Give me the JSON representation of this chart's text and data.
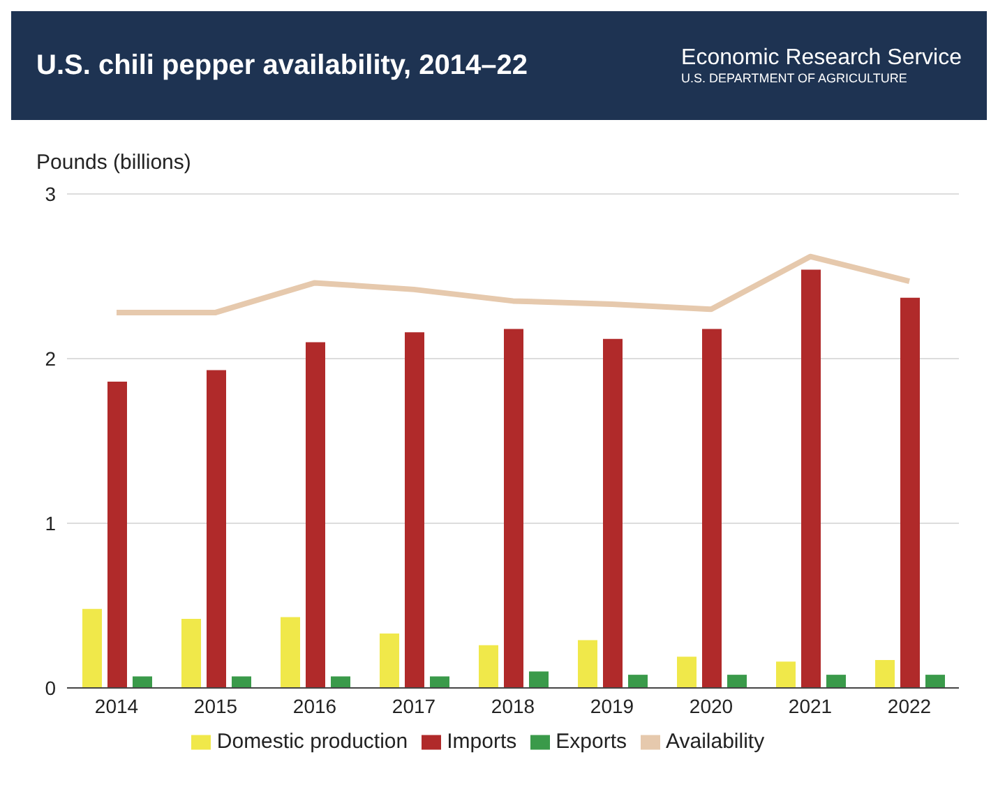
{
  "chart_data": {
    "type": "bar",
    "title": "U.S. chili pepper availability, 2014–22",
    "ylabel": "Pounds (billions)",
    "annotations": [
      "Economic Research Service",
      "U.S. DEPARTMENT OF AGRICULTURE"
    ],
    "categories": [
      "2014",
      "2015",
      "2016",
      "2017",
      "2018",
      "2019",
      "2020",
      "2021",
      "2022"
    ],
    "series": [
      {
        "name": "Domestic production",
        "color": "#f0e84a",
        "values": [
          0.48,
          0.42,
          0.43,
          0.33,
          0.26,
          0.29,
          0.19,
          0.16,
          0.17
        ]
      },
      {
        "name": "Imports",
        "color": "#b02a2a",
        "values": [
          1.86,
          1.93,
          2.1,
          2.16,
          2.18,
          2.12,
          2.18,
          2.54,
          2.37
        ]
      },
      {
        "name": "Exports",
        "color": "#3a9a4a",
        "values": [
          0.07,
          0.07,
          0.07,
          0.07,
          0.1,
          0.08,
          0.08,
          0.08,
          0.08
        ]
      },
      {
        "name": "Availability",
        "type": "line",
        "color": "#e6c9ad",
        "values": [
          2.28,
          2.28,
          2.46,
          2.42,
          2.35,
          2.33,
          2.3,
          2.62,
          2.47
        ]
      }
    ],
    "ylim": [
      0,
      3
    ],
    "yticks": [
      0,
      1,
      2,
      3
    ],
    "grid": "y",
    "legend": "bottom",
    "marker": "none",
    "line_style": "solid"
  }
}
